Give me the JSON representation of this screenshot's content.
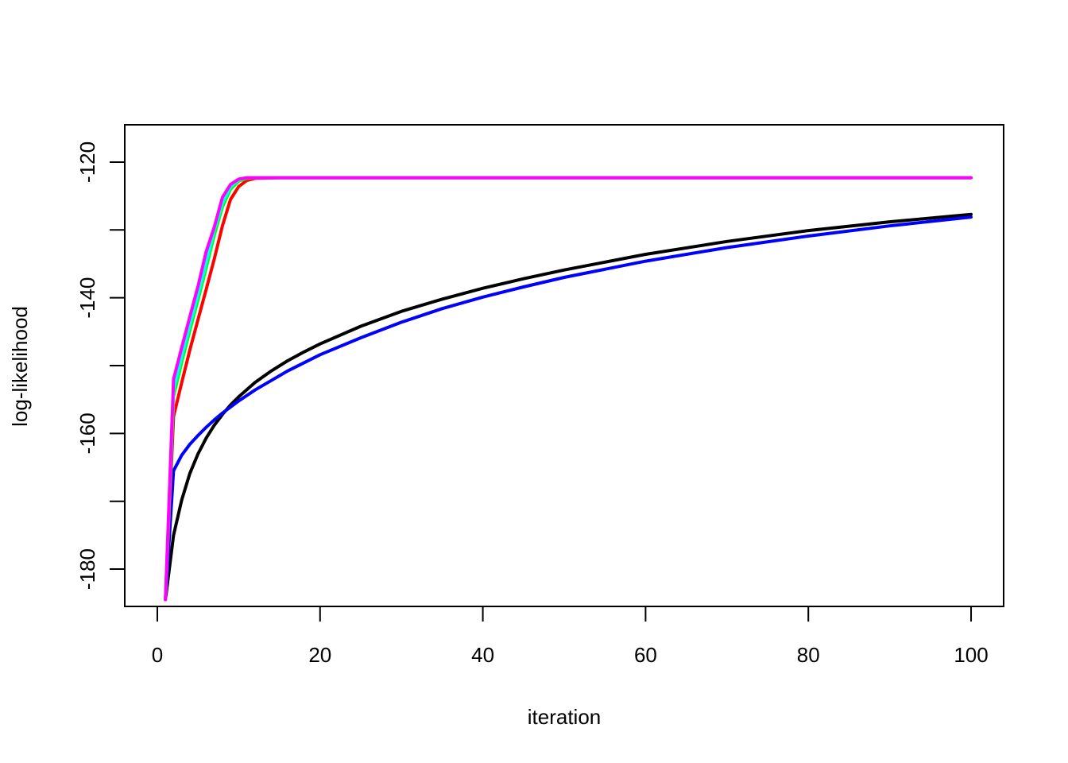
{
  "chart_data": {
    "type": "line",
    "title": "",
    "xlabel": "iteration",
    "ylabel": "log-likelihood",
    "xlim": [
      -4,
      104
    ],
    "ylim": [
      -185.5,
      -114.5
    ],
    "x_ticks": [
      0,
      20,
      40,
      60,
      80,
      100
    ],
    "x_tick_labels": [
      "0",
      "20",
      "40",
      "60",
      "80",
      "100"
    ],
    "y_ticks": [
      -180,
      -160,
      -140,
      -120
    ],
    "y_tick_labels": [
      "-180",
      "-160",
      "-140",
      "-120"
    ],
    "y_tick_marks": [
      -180,
      -170,
      -160,
      -150,
      -140,
      -130,
      -120
    ],
    "grid": false,
    "legend": "none",
    "series": [
      {
        "color": "#000000",
        "x": [
          1,
          2,
          3,
          4,
          5,
          6,
          7,
          8,
          9,
          10,
          12,
          14,
          16,
          18,
          20,
          25,
          30,
          35,
          40,
          45,
          50,
          60,
          70,
          80,
          90,
          100
        ],
        "y": [
          -184.5,
          -175,
          -169.8,
          -165.9,
          -163,
          -160.7,
          -158.8,
          -157.2,
          -155.8,
          -154.6,
          -152.5,
          -150.8,
          -149.3,
          -148,
          -146.8,
          -144.2,
          -142,
          -140.2,
          -138.6,
          -137.2,
          -135.9,
          -133.6,
          -131.7,
          -130.1,
          -128.8,
          -127.7
        ]
      },
      {
        "color": "#0000ff",
        "x": [
          1,
          2,
          3,
          4,
          5,
          6,
          7,
          8,
          9,
          10,
          12,
          14,
          16,
          18,
          20,
          25,
          30,
          35,
          40,
          45,
          50,
          60,
          70,
          80,
          90,
          100
        ],
        "y": [
          -184.5,
          -165.5,
          -163.2,
          -161.6,
          -160.3,
          -159.1,
          -158,
          -157,
          -156.1,
          -155.2,
          -153.6,
          -152.2,
          -150.8,
          -149.6,
          -148.4,
          -145.9,
          -143.6,
          -141.6,
          -139.9,
          -138.4,
          -137,
          -134.6,
          -132.6,
          -130.9,
          -129.4,
          -128.1
        ]
      },
      {
        "color": "#ff0000",
        "x": [
          1,
          2,
          3,
          4,
          5,
          6,
          7,
          8,
          9,
          10,
          11,
          12,
          15,
          20,
          30,
          50,
          100
        ],
        "y": [
          -184.5,
          -157.5,
          -152.5,
          -147.7,
          -143.2,
          -138.8,
          -134.3,
          -129.4,
          -125.5,
          -123.6,
          -122.7,
          -122.4,
          -122.3,
          -122.3,
          -122.3,
          -122.3,
          -122.3
        ]
      },
      {
        "color": "#00ff00",
        "x": [
          1,
          2,
          3,
          4,
          5,
          6,
          7,
          8,
          9,
          10,
          11,
          12,
          15,
          20,
          30,
          50,
          100
        ],
        "y": [
          -184.5,
          -154.5,
          -149.5,
          -144.8,
          -140.3,
          -135.6,
          -130.8,
          -126.6,
          -124,
          -122.8,
          -122.4,
          -122.3,
          -122.3,
          -122.3,
          -122.3,
          -122.3,
          -122.3
        ]
      },
      {
        "color": "#00ffff",
        "x": [
          1,
          2,
          3,
          4,
          5,
          6,
          7,
          8,
          9,
          10,
          11,
          12,
          15,
          20,
          30,
          50,
          100
        ],
        "y": [
          -184.5,
          -153.5,
          -148.6,
          -144,
          -139.5,
          -134.8,
          -130,
          -126,
          -123.6,
          -122.6,
          -122.3,
          -122.3,
          -122.3,
          -122.3,
          -122.3,
          -122.3,
          -122.3
        ]
      },
      {
        "color": "#ff00ff",
        "x": [
          1,
          2,
          3,
          4,
          5,
          6,
          7,
          8,
          9,
          10,
          11,
          12,
          15,
          20,
          30,
          50,
          100
        ],
        "y": [
          -184.5,
          -152,
          -147.3,
          -142.8,
          -138.3,
          -133.2,
          -129.6,
          -125.2,
          -123.3,
          -122.5,
          -122.3,
          -122.3,
          -122.3,
          -122.3,
          -122.3,
          -122.3,
          -122.3
        ]
      }
    ]
  }
}
